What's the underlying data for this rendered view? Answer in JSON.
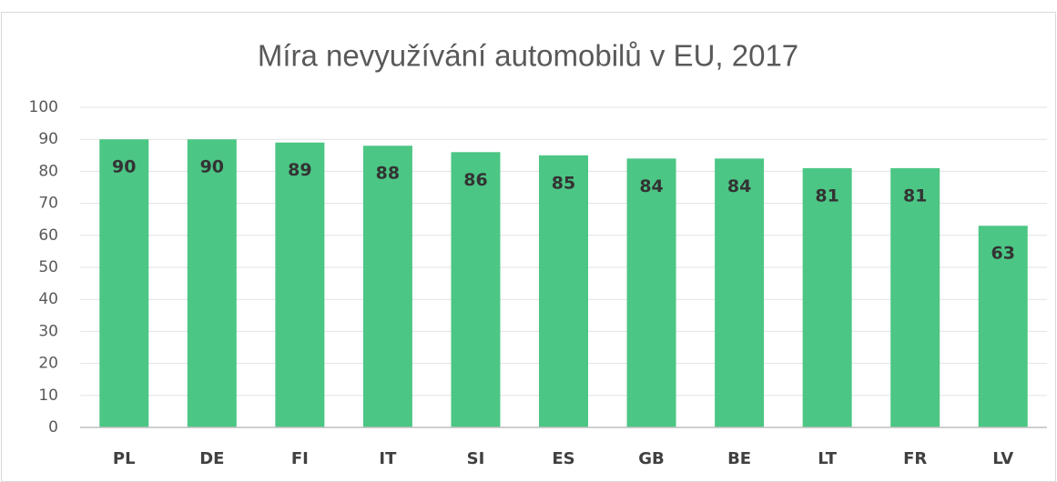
{
  "chart_data": {
    "type": "bar",
    "title": "Míra nevyužívání automobilů v EU, 2017",
    "categories": [
      "PL",
      "DE",
      "FI",
      "IT",
      "SI",
      "ES",
      "GB",
      "BE",
      "LT",
      "FR",
      "LV"
    ],
    "values": [
      90,
      90,
      89,
      88,
      86,
      85,
      84,
      84,
      81,
      81,
      63
    ],
    "color": "#4cc685",
    "ylim": [
      0,
      100
    ],
    "yticks": [
      0,
      10,
      20,
      30,
      40,
      50,
      60,
      70,
      80,
      90,
      100
    ],
    "grid": true
  }
}
